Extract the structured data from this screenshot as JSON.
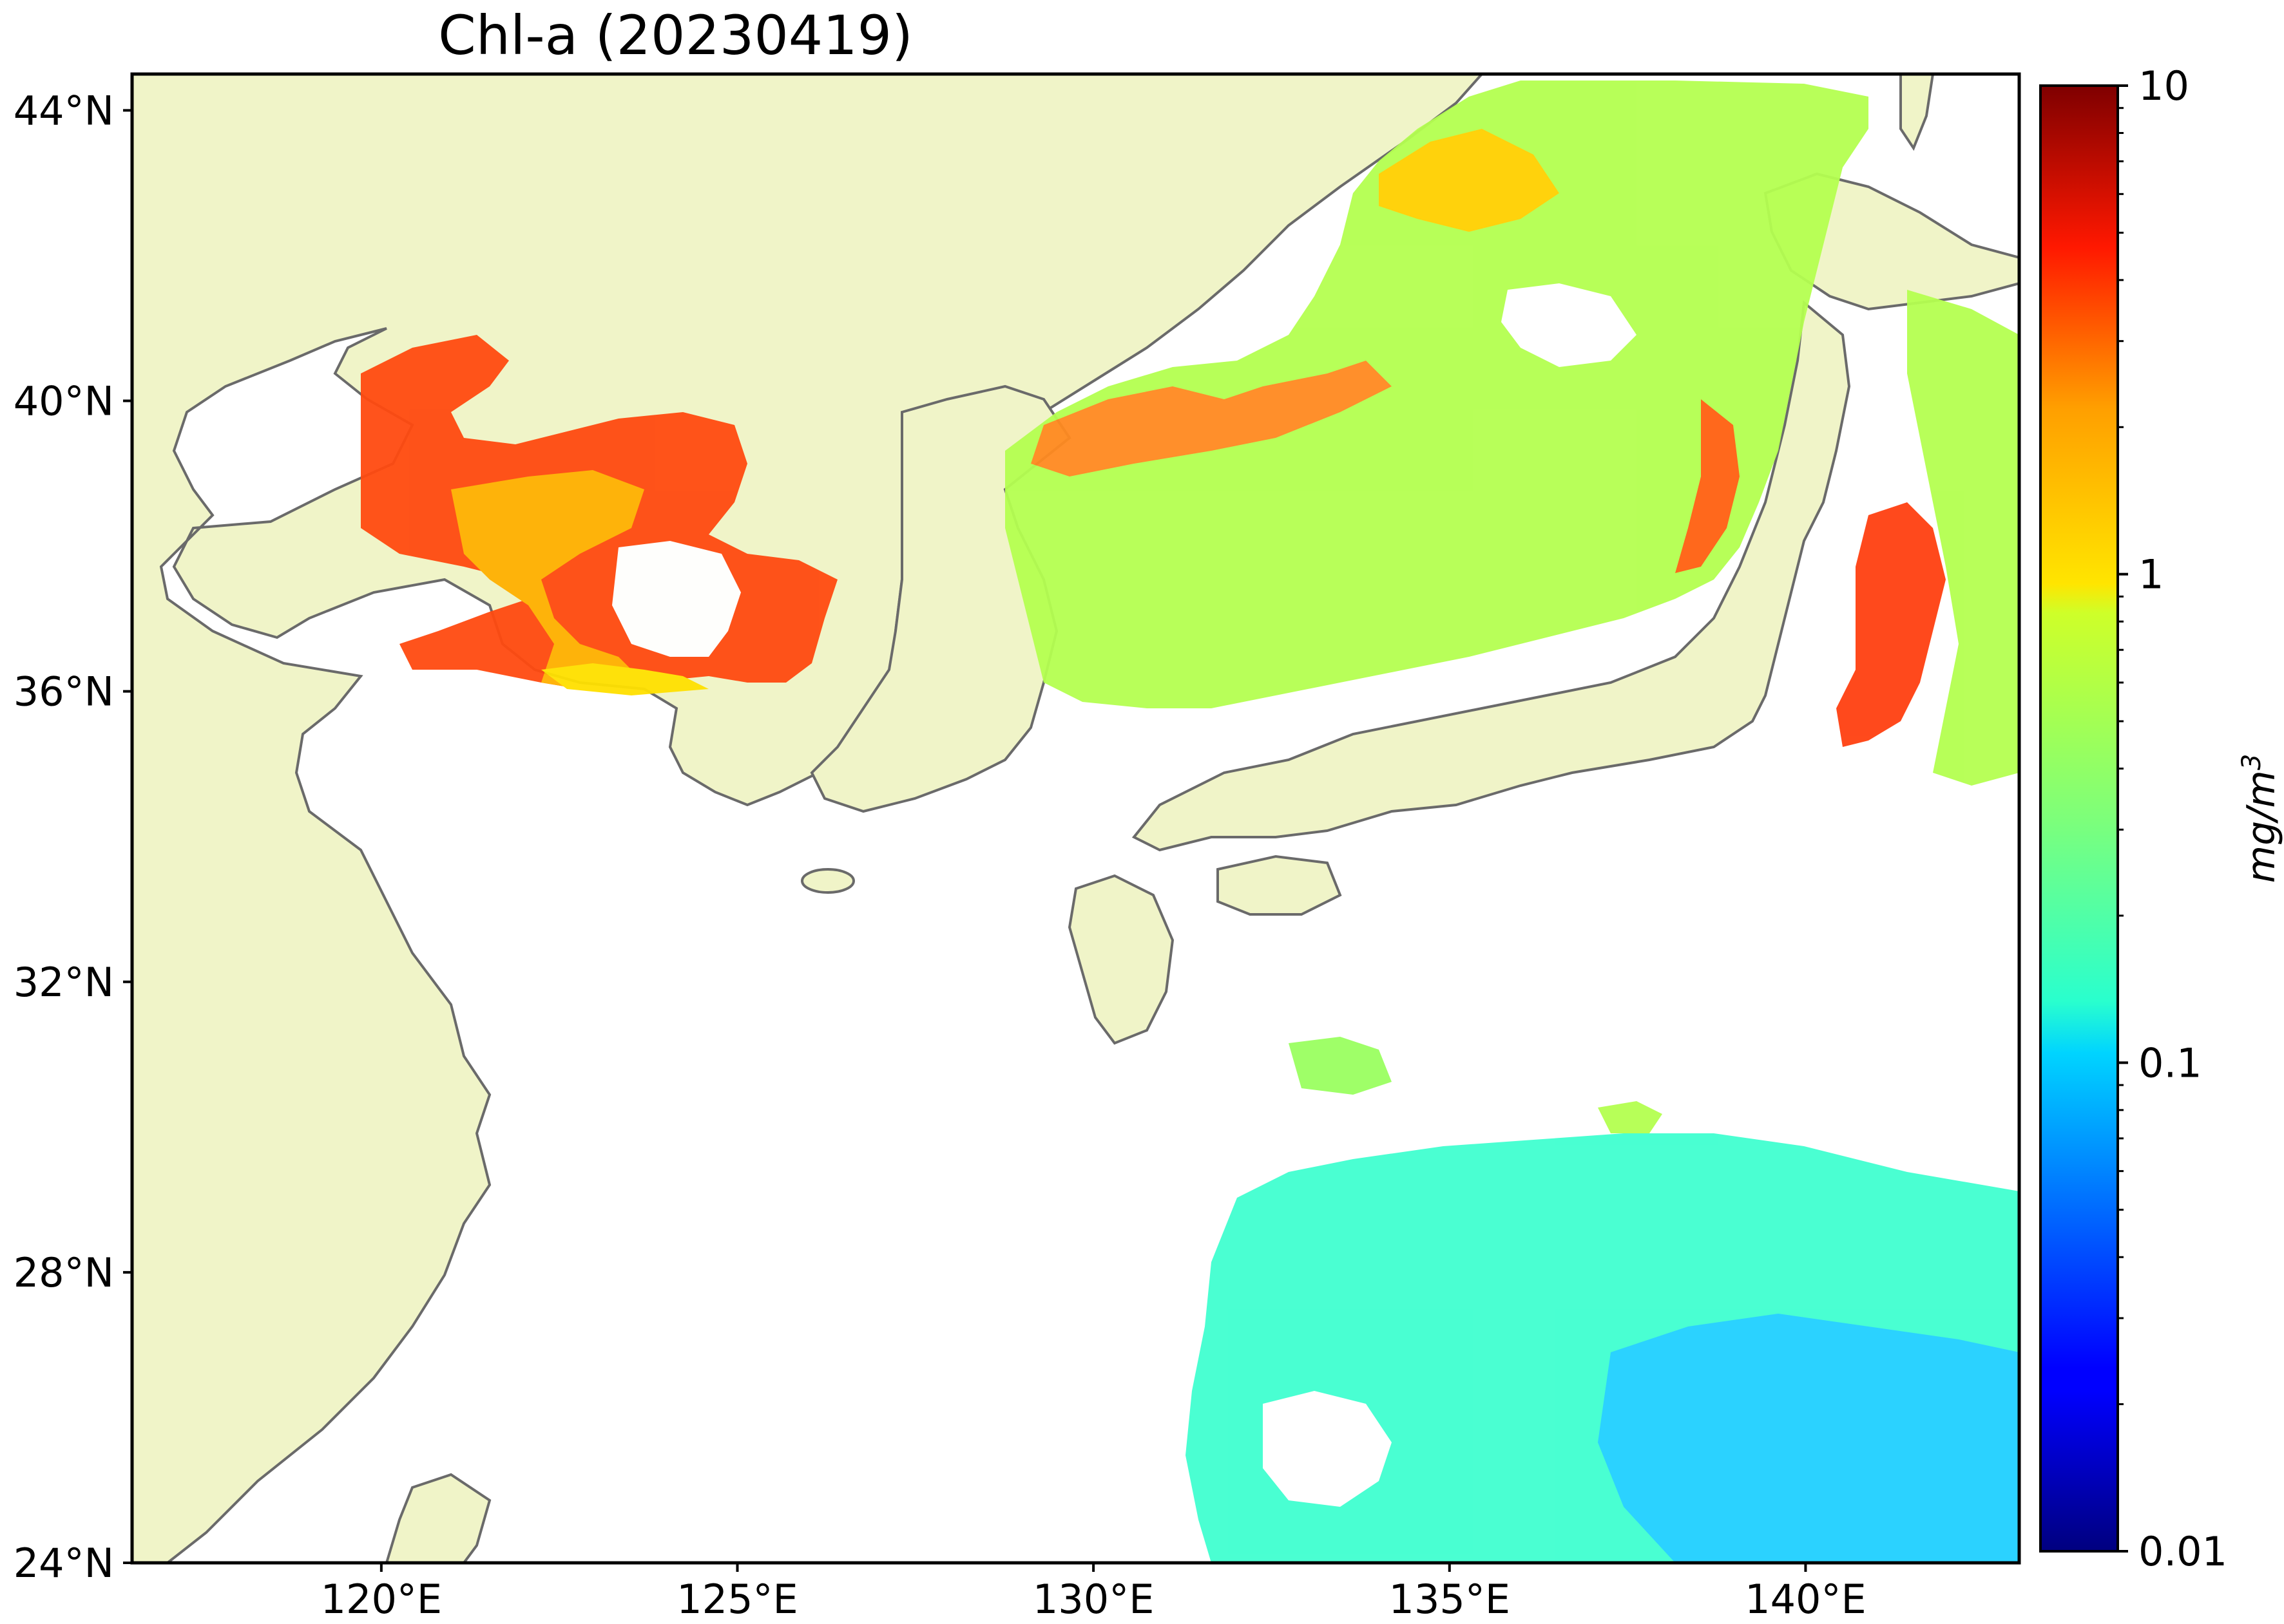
{
  "title": "Chl-a (20230419)",
  "map": {
    "lon_range": [
      116.5,
      143.0
    ],
    "lat_range": [
      24.0,
      44.5
    ],
    "lon_ticks": [
      {
        "value": 120,
        "label": "120°E"
      },
      {
        "value": 125,
        "label": "125°E"
      },
      {
        "value": 130,
        "label": "130°E"
      },
      {
        "value": 135,
        "label": "135°E"
      },
      {
        "value": 140,
        "label": "140°E"
      }
    ],
    "lat_ticks": [
      {
        "value": 44,
        "label": "44°N"
      },
      {
        "value": 40,
        "label": "40°N"
      },
      {
        "value": 36,
        "label": "36°N"
      },
      {
        "value": 32,
        "label": "32°N"
      },
      {
        "value": 28,
        "label": "28°N"
      },
      {
        "value": 24,
        "label": "24°N"
      }
    ]
  },
  "colorbar": {
    "scale": "log",
    "range": [
      0.01,
      10
    ],
    "colormap": "jet",
    "unit_label": "mg/m",
    "unit_exponent": "3",
    "ticks": [
      {
        "value": 10,
        "label": "10"
      },
      {
        "value": 1,
        "label": "1"
      },
      {
        "value": 0.1,
        "label": "0.1"
      },
      {
        "value": 0.01,
        "label": "0.01"
      }
    ]
  },
  "colors": {
    "land": "#f0f4c8",
    "coast": "#6a6a6a",
    "ocean_no_data": "#ffffff",
    "frame": "#000000"
  }
}
